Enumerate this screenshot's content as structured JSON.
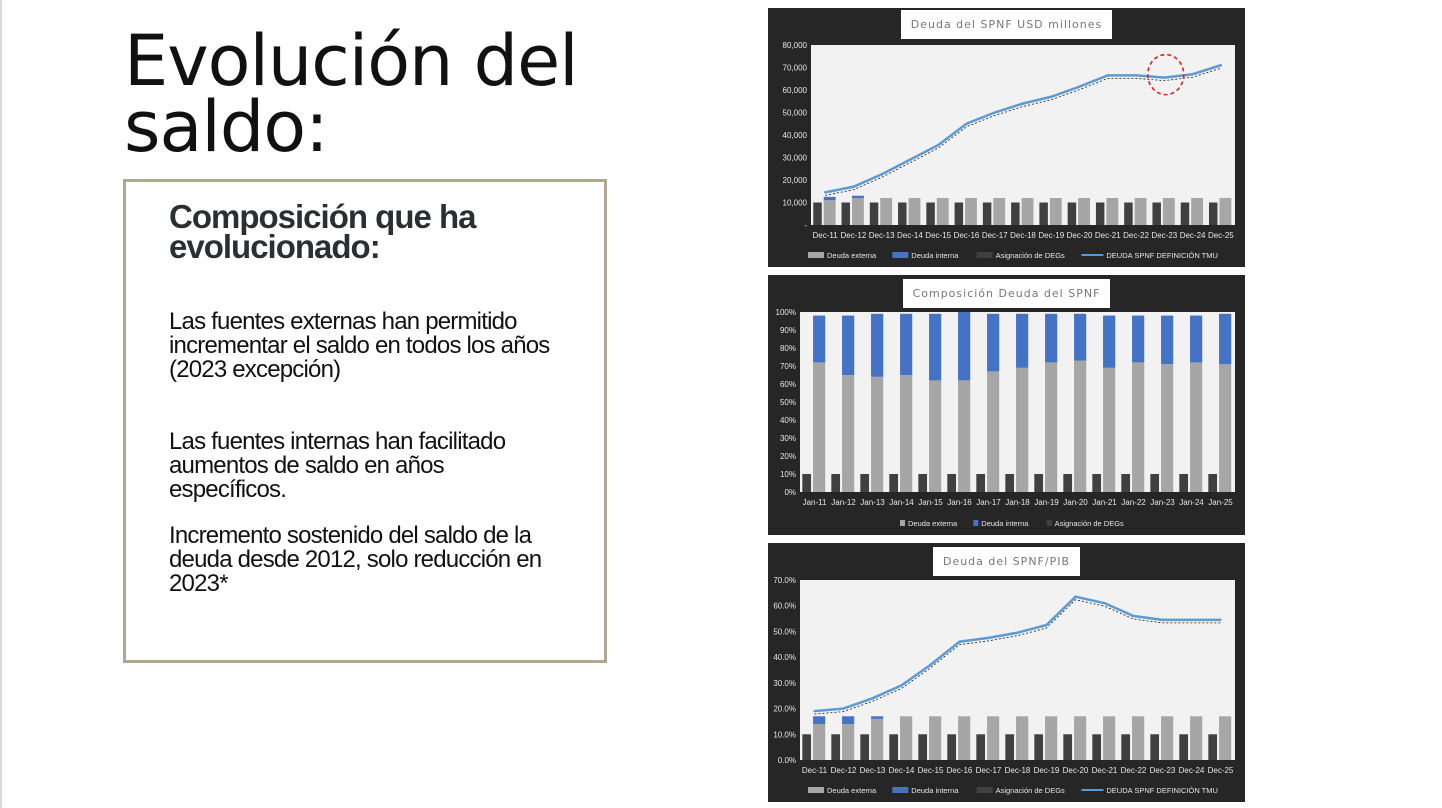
{
  "slide": {
    "title": "Evolución del saldo:",
    "box": {
      "heading": "Composición que ha evolucionado:",
      "paragraphs": [
        "Las fuentes externas han permitido incrementar el saldo en todos los años (2023 excepción)",
        "Las fuentes internas han facilitado aumentos de saldo en años específicos.",
        "Incremento sostenido del saldo de la deuda desde 2012, solo reducción en 2023*"
      ]
    }
  },
  "colors": {
    "panel_bg": "#262626",
    "plot_bg": "#f2f2f2",
    "external": "#a6a6a6",
    "internal": "#4472c4",
    "degs": "#404040",
    "line": "#5b9bd5",
    "highlight": "#e02020"
  },
  "chart_data": [
    {
      "type": "bar",
      "title": "Deuda del SPNF USD millones",
      "categories": [
        "Dec-11",
        "Dec-12",
        "Dec-13",
        "Dec-14",
        "Dec-15",
        "Dec-16",
        "Dec-17",
        "Dec-18",
        "Dec-19",
        "Dec-20",
        "Dec-21",
        "Dec-22",
        "Dec-23",
        "Dec-24",
        "Dec-25"
      ],
      "ylim": [
        0,
        80000
      ],
      "yticks": [
        "-",
        "10,000",
        "20,000",
        "30,000",
        "40,000",
        "50,000",
        "60,000",
        "70,000",
        "80,000"
      ],
      "series": [
        {
          "name": "Deuda externa",
          "values": [
            11000,
            12000,
            12000,
            12000,
            12000,
            12000,
            12000,
            12000,
            12000,
            12000,
            12000,
            12000,
            12000,
            12000,
            12000
          ]
        },
        {
          "name": "Deuda interna",
          "values": [
            1500,
            1000,
            0,
            0,
            0,
            0,
            0,
            0,
            0,
            0,
            0,
            0,
            0,
            0,
            0
          ]
        },
        {
          "name": "Asignación de DEGs",
          "values": [
            10000,
            10000,
            10000,
            10000,
            10000,
            10000,
            10000,
            10000,
            10000,
            10000,
            10000,
            10000,
            10000,
            10000,
            10000
          ]
        },
        {
          "name": "DEUDA SPNF DEFINICIÓN TMU",
          "type": "line",
          "values": [
            14500,
            17000,
            22500,
            29000,
            35500,
            45000,
            50000,
            54000,
            57000,
            61500,
            66500,
            66500,
            65500,
            67000,
            71000
          ]
        }
      ],
      "annotation": "red dashed circle around Dec-23",
      "legend": "bottom"
    },
    {
      "type": "bar",
      "title": "Composición Deuda del SPNF",
      "categories": [
        "Jan-11",
        "Jan-12",
        "Jan-13",
        "Jan-14",
        "Jan-15",
        "Jan-16",
        "Jan-17",
        "Jan-18",
        "Jan-19",
        "Jan-20",
        "Jan-21",
        "Jan-22",
        "Jan-23",
        "Jan-24",
        "Jan-25"
      ],
      "ylim": [
        0,
        100
      ],
      "yticks": [
        "0%",
        "10%",
        "20%",
        "30%",
        "40%",
        "50%",
        "60%",
        "70%",
        "80%",
        "90%",
        "100%"
      ],
      "series": [
        {
          "name": "Deuda externa",
          "values": [
            72,
            65,
            64,
            65,
            62,
            62,
            67,
            69,
            72,
            73,
            69,
            72,
            71,
            72,
            71
          ]
        },
        {
          "name": "Deuda interna",
          "values": [
            26,
            33,
            35,
            34,
            37,
            38,
            32,
            30,
            27,
            26,
            29,
            26,
            27,
            26,
            28
          ]
        },
        {
          "name": "Asignación de DEGs",
          "values": [
            10,
            10,
            10,
            10,
            10,
            10,
            10,
            10,
            10,
            10,
            10,
            10,
            10,
            10,
            10
          ]
        }
      ],
      "legend": "bottom"
    },
    {
      "type": "bar",
      "title": "Deuda del SPNF/PIB",
      "categories": [
        "Dec-11",
        "Dec-12",
        "Dec-13",
        "Dec-14",
        "Dec-15",
        "Dec-16",
        "Dec-17",
        "Dec-18",
        "Dec-19",
        "Dec-20",
        "Dec-21",
        "Dec-22",
        "Dec-23",
        "Dec-24",
        "Dec-25"
      ],
      "ylim": [
        0,
        70
      ],
      "yticks": [
        "0.0%",
        "10.0%",
        "20.0%",
        "30.0%",
        "40.0%",
        "50.0%",
        "60.0%",
        "70.0%"
      ],
      "series": [
        {
          "name": "Deuda externa",
          "values": [
            14,
            14,
            16,
            17,
            17,
            17,
            17,
            17,
            17,
            17,
            17,
            17,
            17,
            17,
            17
          ]
        },
        {
          "name": "Deuda interna",
          "values": [
            3,
            3,
            1,
            0,
            0,
            0,
            0,
            0,
            0,
            0,
            0,
            0,
            0,
            0,
            0
          ]
        },
        {
          "name": "Asignación de DEGs",
          "values": [
            10,
            10,
            10,
            10,
            10,
            10,
            10,
            10,
            10,
            10,
            10,
            10,
            10,
            10,
            10
          ]
        },
        {
          "name": "DEUDA SPNF DEFINICIÓN TMU",
          "type": "line",
          "values": [
            19,
            20,
            24,
            29,
            37,
            46,
            47.5,
            49.5,
            52.5,
            63.5,
            61,
            56,
            54.5,
            54.5,
            54.5
          ]
        }
      ],
      "legend": "bottom"
    }
  ]
}
